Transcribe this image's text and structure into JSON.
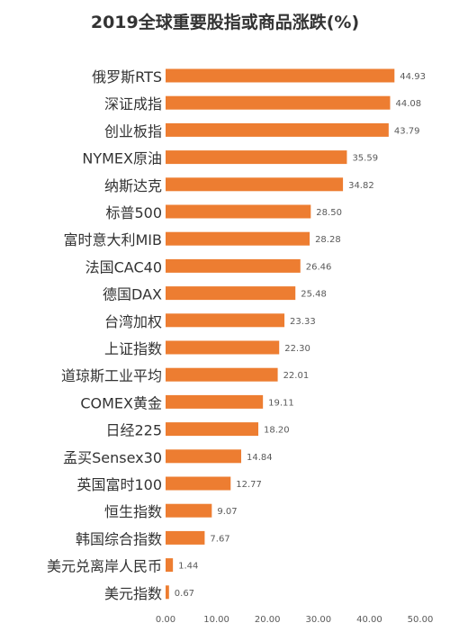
{
  "chart_data": {
    "type": "bar",
    "orientation": "horizontal",
    "title": "2019全球重要股指或商品涨跌(%)",
    "categories": [
      "俄罗斯RTS",
      "深证成指",
      "创业板指",
      "NYMEX原油",
      "纳斯达克",
      "标普500",
      "富时意大利MIB",
      "法国CAC40",
      "德国DAX",
      "台湾加权",
      "上证指数",
      "道琼斯工业平均",
      "COMEX黄金",
      "日经225",
      "孟买Sensex30",
      "英国富时100",
      "恒生指数",
      "韩国综合指数",
      "美元兑离岸人民币",
      "美元指数"
    ],
    "values": [
      44.93,
      44.08,
      43.79,
      35.59,
      34.82,
      28.5,
      28.28,
      26.46,
      25.48,
      23.33,
      22.3,
      22.01,
      19.11,
      18.2,
      14.84,
      12.77,
      9.07,
      7.67,
      1.44,
      0.67
    ],
    "value_labels": [
      "44.93",
      "44.08",
      "43.79",
      "35.59",
      "34.82",
      "28.50",
      "28.28",
      "26.46",
      "25.48",
      "23.33",
      "22.30",
      "22.01",
      "19.11",
      "18.20",
      "14.84",
      "12.77",
      "9.07",
      "7.67",
      "1.44",
      "0.67"
    ],
    "xlim": [
      0,
      50
    ],
    "x_ticks": [
      "0.00",
      "10.00",
      "20.00",
      "30.00",
      "40.00",
      "50.00"
    ],
    "grid": false,
    "legend": "none",
    "colors": {
      "bar": "#ED7D31",
      "text": "#333333",
      "value_label": "#595959"
    }
  }
}
